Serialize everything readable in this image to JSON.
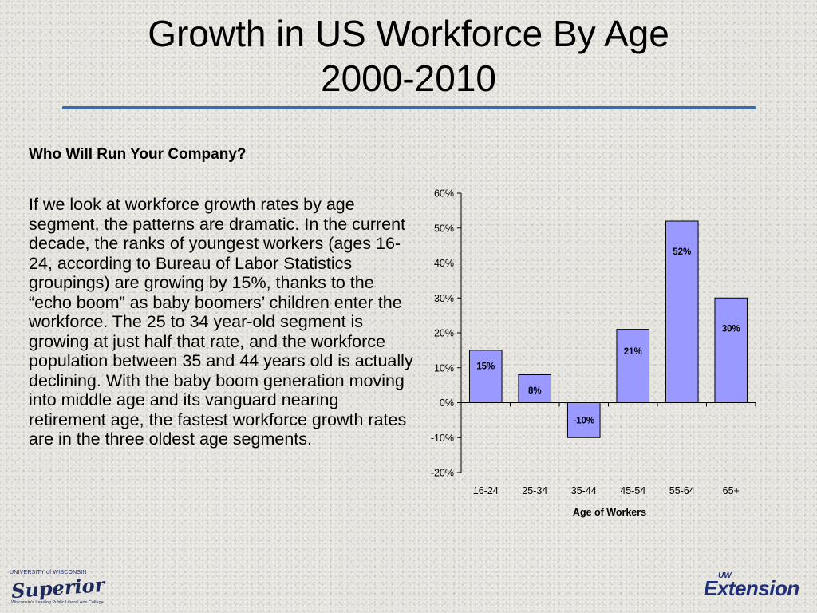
{
  "slide": {
    "title_line1": "Growth in US Workforce By Age",
    "title_line2": "2000-2010",
    "subheading": "Who Will Run Your Company?",
    "body": "If we look at workforce growth rates by age segment, the patterns are dramatic. In the current decade, the ranks of youngest workers  (ages 16-24, according to Bureau of Labor Statistics groupings) are growing by 15%, thanks to the “echo boom” as baby boomers’ children enter the workforce.  The 25 to 34 year-old segment is growing at just half that rate, and the workforce population between 35 and 44 years old is actually declining.  With the baby boom generation moving into middle age and its vanguard nearing retirement age, the fastest workforce growth rates are in the three oldest age segments.",
    "accent_color": "#3d6aa8"
  },
  "logos": {
    "left_top": "UNIVERSITY of WISCONSIN",
    "left_main": "Superior",
    "left_tagline": "Wisconsin's Leading Public Liberal Arts College",
    "right_small": "UW",
    "right_main": "Extension"
  },
  "chart_data": {
    "type": "bar",
    "categories": [
      "16-24",
      "25-34",
      "35-44",
      "45-54",
      "55-64",
      "65+"
    ],
    "values": [
      15,
      8,
      -10,
      21,
      52,
      30
    ],
    "data_labels": [
      "15%",
      "8%",
      "-10%",
      "21%",
      "52%",
      "30%"
    ],
    "xlabel": "Age of Workers",
    "ylabel": "",
    "ylim": [
      -20,
      60
    ],
    "yticks": [
      60,
      50,
      40,
      30,
      20,
      10,
      0,
      -10,
      -20
    ],
    "ytick_labels": [
      "60%",
      "50%",
      "40%",
      "30%",
      "20%",
      "10%",
      "0%",
      "-10%",
      "-20%"
    ],
    "bar_color": "#9999ff",
    "grid": false,
    "legend": "none"
  }
}
